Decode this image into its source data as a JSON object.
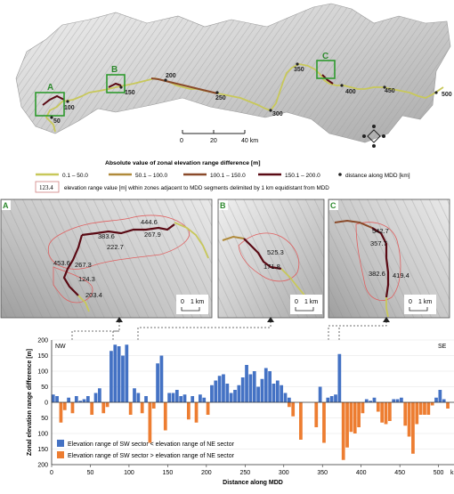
{
  "overview": {
    "scale_labels": [
      "0",
      "20",
      "40 km"
    ],
    "distance_markers": [
      "50",
      "100",
      "150",
      "200",
      "250",
      "300",
      "350",
      "400",
      "450",
      "500"
    ],
    "inset_labels": [
      "A",
      "B",
      "C"
    ]
  },
  "legend": {
    "title": "Absolute value of zonal elevation range difference [m]",
    "classes": [
      {
        "label": "0.1 – 50.0",
        "color": "#c8c85a"
      },
      {
        "label": "50.1 – 100.0",
        "color": "#b08a3a"
      },
      {
        "label": "100.1 – 150.0",
        "color": "#8a4a2a"
      },
      {
        "label": "150.1 – 200.0",
        "color": "#5a0a14"
      }
    ],
    "dot_label": "distance along MDD [km]",
    "box_value": "123.4",
    "box_text": "elevation range value [m] within zones adjacent to MDD segments delimited by 1 km equidistant from MDD"
  },
  "panels": [
    {
      "letter": "A",
      "values": [
        "444.6",
        "383.6",
        "222.7",
        "267.9",
        "453.6",
        "267.3",
        "124.3",
        "203.4"
      ],
      "scale": [
        "0",
        "1 km"
      ]
    },
    {
      "letter": "B",
      "values": [
        "525.3",
        "171.8"
      ],
      "scale": [
        "0",
        "1 km"
      ]
    },
    {
      "letter": "C",
      "values": [
        "542.7",
        "357.7",
        "382.6",
        "419.4"
      ],
      "scale": [
        "0",
        "1 km"
      ]
    }
  ],
  "chart_data": {
    "type": "bar",
    "corner_labels": {
      "left": "NW",
      "right": "SE"
    },
    "ylabel": "Zonal elevation range difference [m]",
    "xlabel": "Distance along MDD",
    "x_unit": "km",
    "xlim": [
      0,
      520
    ],
    "ylim": [
      -200,
      200
    ],
    "yticks": [
      "200",
      "150",
      "100",
      "50",
      "0",
      "50",
      "100",
      "150",
      "200"
    ],
    "xticks": [
      "0",
      "50",
      "100",
      "150",
      "200",
      "250",
      "300",
      "350",
      "400",
      "450",
      "500"
    ],
    "bin_width_km": 5,
    "series": [
      {
        "name": "Elevation range of SW sector < elevation range of NE sector",
        "color": "#4472c4",
        "x": [
          2,
          7,
          22,
          32,
          37,
          42,
          47,
          57,
          62,
          77,
          82,
          87,
          92,
          97,
          107,
          112,
          122,
          137,
          142,
          152,
          157,
          162,
          167,
          172,
          182,
          192,
          197,
          207,
          212,
          217,
          222,
          227,
          232,
          237,
          242,
          247,
          252,
          257,
          262,
          267,
          272,
          277,
          282,
          287,
          292,
          297,
          302,
          307,
          347,
          357,
          362,
          367,
          372,
          407,
          412,
          417,
          442,
          447,
          452,
          497,
          502,
          507
        ],
        "values": [
          25,
          20,
          15,
          20,
          5,
          10,
          20,
          30,
          45,
          165,
          185,
          180,
          150,
          185,
          45,
          30,
          20,
          125,
          150,
          30,
          30,
          40,
          20,
          25,
          20,
          25,
          15,
          55,
          70,
          85,
          90,
          60,
          30,
          40,
          55,
          80,
          120,
          90,
          100,
          50,
          75,
          110,
          100,
          60,
          70,
          55,
          30,
          15,
          50,
          15,
          20,
          25,
          155,
          10,
          5,
          15,
          10,
          10,
          15,
          15,
          40,
          10
        ]
      },
      {
        "name": "Elevation range of SW sector > elevation range of NE sector",
        "color": "#ed7d31",
        "x": [
          12,
          17,
          27,
          52,
          67,
          72,
          102,
          117,
          127,
          132,
          147,
          177,
          187,
          202,
          307,
          312,
          322,
          342,
          352,
          377,
          382,
          387,
          392,
          397,
          402,
          422,
          427,
          432,
          437,
          457,
          462,
          467,
          472,
          477,
          482,
          487,
          492,
          512
        ],
        "values": [
          65,
          25,
          35,
          40,
          35,
          15,
          40,
          35,
          130,
          20,
          90,
          55,
          65,
          40,
          15,
          45,
          120,
          80,
          130,
          185,
          145,
          95,
          100,
          80,
          35,
          30,
          65,
          70,
          60,
          75,
          110,
          165,
          70,
          40,
          40,
          40,
          10,
          20
        ]
      }
    ]
  }
}
